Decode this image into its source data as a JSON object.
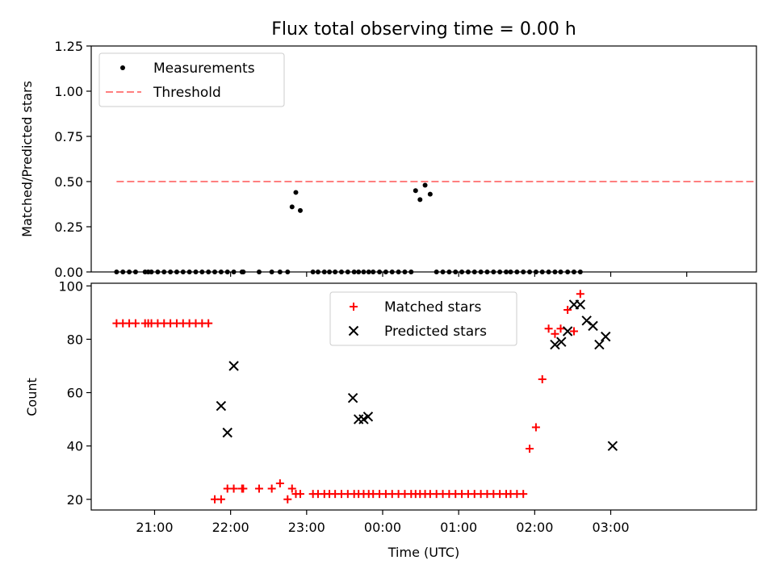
{
  "chart_data": [
    {
      "type": "scatter",
      "title": "Flux total observing time = 0.00 h",
      "xlabel": "",
      "ylabel": "Matched/Predicted stars",
      "xlim": [
        -40,
        1010
      ],
      "ylim": [
        0,
        1.25
      ],
      "yticks": [
        0,
        0.25,
        0.5,
        0.75,
        1.0,
        1.25
      ],
      "ytick_labels": [
        "0.00",
        "0.25",
        "0.50",
        "0.75",
        "1.00",
        "1.25"
      ],
      "xticks": [
        180,
        300,
        420,
        540,
        660,
        780,
        900
      ],
      "grid": false,
      "legend_position": "upper-left",
      "series": [
        {
          "name": "Measurements",
          "marker": "dot",
          "color": "#000000",
          "x": [
            0,
            10,
            20,
            30,
            45,
            50,
            55,
            65,
            75,
            85,
            95,
            105,
            115,
            125,
            135,
            145,
            155,
            165,
            175,
            185,
            198,
            200,
            225,
            245,
            258,
            270,
            277,
            283,
            290,
            310,
            318,
            328,
            336,
            345,
            355,
            365,
            375,
            382,
            390,
            398,
            405,
            415,
            425,
            435,
            445,
            455,
            465,
            472,
            479,
            487,
            495,
            505,
            515,
            525,
            535,
            545,
            555,
            565,
            575,
            585,
            595,
            605,
            615,
            622,
            632,
            642,
            652,
            662,
            672,
            682,
            692,
            701,
            712,
            722,
            732
          ],
          "y": [
            0,
            0,
            0,
            0,
            0,
            0,
            0,
            0,
            0,
            0,
            0,
            0,
            0,
            0,
            0,
            0,
            0,
            0,
            0,
            0,
            0,
            0,
            0,
            0,
            0,
            0,
            0.36,
            0.44,
            0.34,
            0,
            0,
            0,
            0,
            0,
            0,
            0,
            0,
            0,
            0,
            0,
            0,
            0,
            0,
            0,
            0,
            0,
            0,
            0.45,
            0.4,
            0.48,
            0.43,
            0,
            0,
            0,
            0,
            0,
            0,
            0,
            0,
            0,
            0,
            0,
            0,
            0,
            0,
            0,
            0,
            0,
            0,
            0,
            0,
            0,
            0,
            0,
            0
          ]
        },
        {
          "name": "Threshold",
          "marker": "dashed-line",
          "color": "#ff7f7f",
          "x": [
            0,
            1010
          ],
          "y": [
            0.5,
            0.5
          ]
        }
      ]
    },
    {
      "type": "scatter",
      "title": "",
      "xlabel": "Time (UTC)",
      "ylabel": "Count",
      "xlim": [
        -40,
        1010
      ],
      "ylim": [
        16,
        101
      ],
      "yticks": [
        20,
        40,
        60,
        80,
        100
      ],
      "ytick_labels": [
        "20",
        "40",
        "60",
        "80",
        "100"
      ],
      "xticks": [
        60,
        180,
        300,
        420,
        540,
        660,
        780
      ],
      "xtick_labels": [
        "21:00",
        "22:00",
        "23:00",
        "00:00",
        "01:00",
        "02:00",
        "03:00"
      ],
      "grid": false,
      "legend_position": "upper-center",
      "series": [
        {
          "name": "Matched stars",
          "marker": "plus",
          "color": "#ff0000",
          "x": [
            0,
            10,
            20,
            30,
            45,
            50,
            55,
            65,
            75,
            85,
            95,
            105,
            115,
            125,
            135,
            145,
            155,
            165,
            175,
            185,
            198,
            200,
            225,
            245,
            258,
            270,
            277,
            283,
            290,
            310,
            318,
            328,
            336,
            345,
            355,
            365,
            375,
            382,
            390,
            398,
            405,
            415,
            425,
            435,
            445,
            455,
            465,
            472,
            479,
            487,
            495,
            505,
            515,
            525,
            535,
            545,
            555,
            565,
            575,
            585,
            595,
            605,
            615,
            622,
            632,
            642,
            652,
            662,
            672,
            682,
            692,
            701,
            712,
            722,
            732
          ],
          "y": [
            86,
            86,
            86,
            86,
            86,
            86,
            86,
            86,
            86,
            86,
            86,
            86,
            86,
            86,
            86,
            86,
            20,
            20,
            24,
            24,
            24,
            24,
            24,
            24,
            26,
            20,
            24,
            22,
            22,
            22,
            22,
            22,
            22,
            22,
            22,
            22,
            22,
            22,
            22,
            22,
            22,
            22,
            22,
            22,
            22,
            22,
            22,
            22,
            22,
            22,
            22,
            22,
            22,
            22,
            22,
            22,
            22,
            22,
            22,
            22,
            22,
            22,
            22,
            22,
            22,
            22,
            39,
            47,
            65,
            84,
            82,
            84,
            91,
            83,
            97
          ]
        },
        {
          "name": "Predicted stars",
          "marker": "x",
          "color": "#000000",
          "x": [
            165,
            175,
            185,
            373,
            382,
            390,
            397,
            692,
            702,
            712,
            722,
            732,
            742,
            752,
            762,
            772,
            783
          ],
          "y": [
            55,
            45,
            70,
            58,
            50,
            50,
            51,
            78,
            79,
            83,
            93,
            93,
            87,
            85,
            78,
            81,
            40
          ]
        }
      ]
    }
  ]
}
